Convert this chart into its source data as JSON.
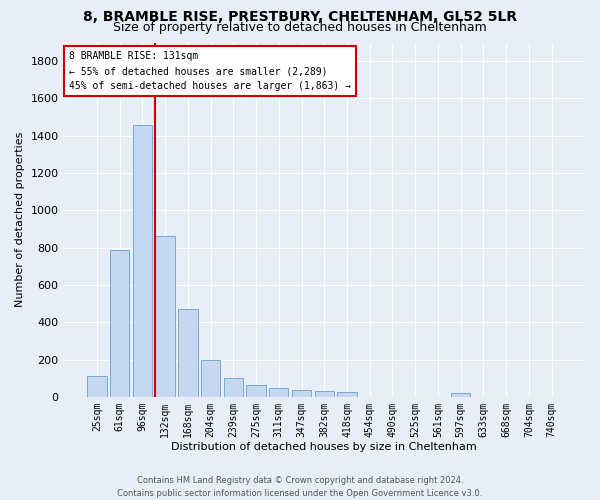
{
  "title1": "8, BRAMBLE RISE, PRESTBURY, CHELTENHAM, GL52 5LR",
  "title2": "Size of property relative to detached houses in Cheltenham",
  "xlabel": "Distribution of detached houses by size in Cheltenham",
  "ylabel": "Number of detached properties",
  "footer1": "Contains HM Land Registry data © Crown copyright and database right 2024.",
  "footer2": "Contains public sector information licensed under the Open Government Licence v3.0.",
  "categories": [
    "25sqm",
    "61sqm",
    "96sqm",
    "132sqm",
    "168sqm",
    "204sqm",
    "239sqm",
    "275sqm",
    "311sqm",
    "347sqm",
    "382sqm",
    "418sqm",
    "454sqm",
    "490sqm",
    "525sqm",
    "561sqm",
    "597sqm",
    "633sqm",
    "668sqm",
    "704sqm",
    "740sqm"
  ],
  "values": [
    110,
    790,
    1460,
    860,
    470,
    200,
    100,
    65,
    45,
    35,
    30,
    25,
    0,
    0,
    0,
    0,
    20,
    0,
    0,
    0,
    0
  ],
  "bar_color": "#c5d8f0",
  "bar_edge_color": "#7aa8d4",
  "marker_index": 3,
  "marker_color": "#cc0000",
  "annotation_line1": "8 BRAMBLE RISE: 131sqm",
  "annotation_line2": "← 55% of detached houses are smaller (2,289)",
  "annotation_line3": "45% of semi-detached houses are larger (1,863) →",
  "annotation_box_color": "#ffffff",
  "annotation_box_edge": "#cc0000",
  "ylim": [
    0,
    1900
  ],
  "yticks": [
    0,
    200,
    400,
    600,
    800,
    1000,
    1200,
    1400,
    1600,
    1800
  ],
  "background_color": "#e8eef5",
  "grid_color": "#ffffff",
  "title1_fontsize": 10,
  "title2_fontsize": 9,
  "xlabel_fontsize": 8,
  "ylabel_fontsize": 8,
  "tick_fontsize": 7,
  "annotation_fontsize": 7,
  "footer_fontsize": 6
}
